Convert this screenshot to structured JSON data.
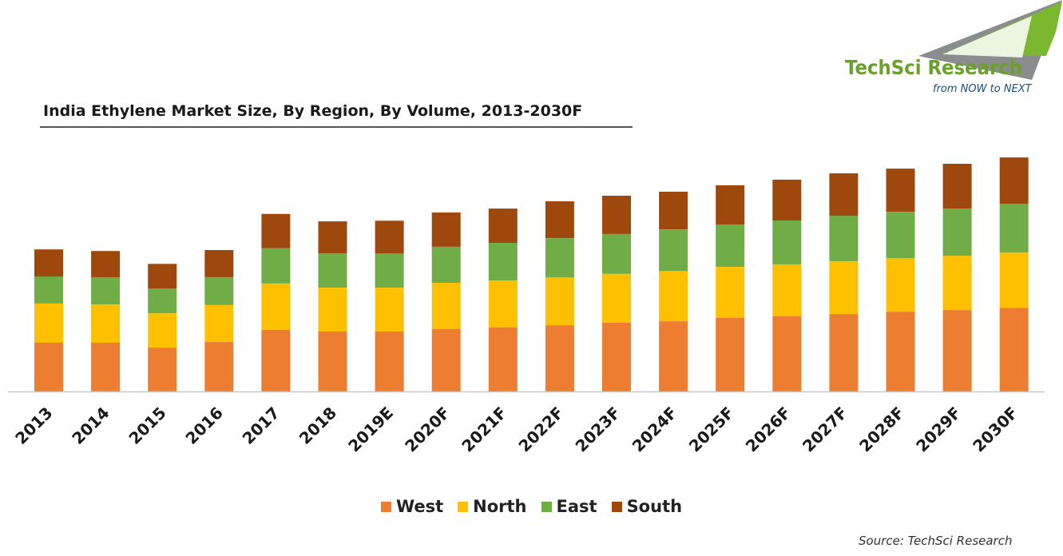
{
  "logo": {
    "name": "TechSci Research",
    "tagline": "from NOW to NEXT"
  },
  "source": "Source: TechSci Research",
  "colors": {
    "West": "#ed7d31",
    "North": "#ffc000",
    "East": "#70ad47",
    "South": "#9e480e",
    "axis": "#c8c8c8",
    "logo_green": "#6aa12a",
    "logo_gray": "#8a8c8e",
    "logo_blue": "#1f4e79"
  },
  "chart_data": {
    "type": "bar",
    "stacked": true,
    "title": "India Ethylene Market Size, By Region, By Volume, 2013-2030F",
    "xlabel": "",
    "ylabel": "",
    "ylim": [
      0,
      100
    ],
    "grid": false,
    "legend_position": "bottom",
    "categories": [
      "2013",
      "2014",
      "2015",
      "2016",
      "2017",
      "2018",
      "2019E",
      "2020F",
      "2021F",
      "2022F",
      "2023F",
      "2024F",
      "2025F",
      "2026F",
      "2027F",
      "2028F",
      "2029F",
      "2030F"
    ],
    "series": [
      {
        "name": "West",
        "values": [
          20.9,
          20.9,
          18.8,
          21.2,
          26.4,
          25.7,
          25.7,
          26.7,
          27.4,
          28.4,
          29.5,
          30.1,
          31.5,
          32.2,
          33.2,
          34.2,
          34.9,
          35.9
        ]
      },
      {
        "name": "North",
        "values": [
          16.8,
          16.4,
          14.7,
          15.8,
          19.9,
          18.8,
          18.8,
          19.9,
          20.2,
          20.5,
          20.9,
          21.6,
          21.9,
          22.3,
          22.6,
          22.9,
          23.3,
          23.6
        ]
      },
      {
        "name": "East",
        "values": [
          11.6,
          11.6,
          10.6,
          12.0,
          15.1,
          14.7,
          14.7,
          15.4,
          16.1,
          16.8,
          17.1,
          17.8,
          18.2,
          18.8,
          19.5,
          19.9,
          20.2,
          20.9
        ]
      },
      {
        "name": "South",
        "values": [
          11.6,
          11.3,
          10.6,
          11.6,
          14.7,
          13.7,
          14.0,
          14.7,
          14.7,
          15.8,
          16.4,
          16.1,
          16.8,
          17.5,
          18.2,
          18.5,
          19.2,
          19.9
        ]
      }
    ]
  }
}
